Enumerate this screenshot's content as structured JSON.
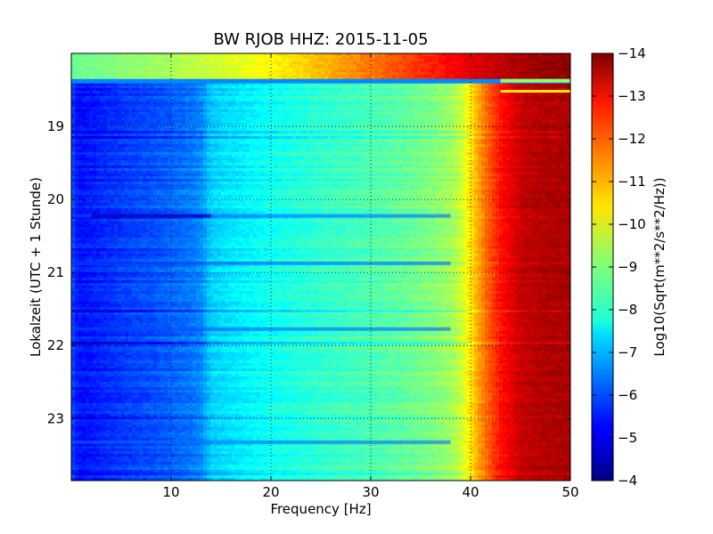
{
  "chart_data": {
    "type": "heatmap",
    "title": "BW RJOB HHZ: 2015-11-05",
    "xlabel": "Frequency [Hz]",
    "ylabel": "Lokalzeit (UTC + 1 Stunde)",
    "colorbar_label": "Log10(Sqrt(m**2/s**2/Hz))",
    "colormap": "jet",
    "grid": true,
    "x": {
      "lim": [
        0,
        50
      ],
      "ticks": [
        10,
        20,
        30,
        40,
        50
      ],
      "tick_labels": [
        "10",
        "20",
        "30",
        "40",
        "50"
      ]
    },
    "y": {
      "lim": [
        18.0,
        23.85
      ],
      "inverted": true,
      "ticks": [
        19,
        20,
        21,
        22,
        23
      ],
      "tick_labels": [
        "19",
        "20",
        "21",
        "22",
        "23"
      ]
    },
    "colorbar": {
      "lim": [
        -14,
        -4
      ],
      "ticks": [
        -4,
        -5,
        -6,
        -7,
        -8,
        -9,
        -10,
        -11,
        -12,
        -13,
        -14
      ],
      "tick_labels": [
        "−4",
        "−5",
        "−6",
        "−7",
        "−8",
        "−9",
        "−10",
        "−11",
        "−12",
        "−13",
        "−14"
      ]
    },
    "data_start_hour": 18.35,
    "frequency_profile_hz": [
      0,
      0.5,
      1,
      2,
      5,
      8,
      10,
      12,
      13,
      14,
      16,
      18,
      20,
      23,
      26,
      30,
      33,
      36,
      38,
      39,
      40,
      41,
      42,
      43,
      45,
      47,
      50
    ],
    "frequency_profile_value": [
      -6.0,
      -5.5,
      -5.4,
      -5.5,
      -5.8,
      -6.0,
      -6.2,
      -6.4,
      -6.6,
      -7.3,
      -7.5,
      -7.7,
      -7.9,
      -8.1,
      -8.3,
      -8.5,
      -8.7,
      -9.0,
      -9.3,
      -9.7,
      -10.5,
      -11.3,
      -12.0,
      -12.6,
      -13.3,
      -13.5,
      -13.6
    ],
    "pre_data_profile_hz": [
      0,
      5,
      10,
      15,
      20,
      25,
      30,
      35,
      40,
      45,
      50
    ],
    "pre_data_profile_value": [
      -8.8,
      -9.1,
      -9.4,
      -9.8,
      -10.3,
      -10.9,
      -11.6,
      -12.3,
      -13.0,
      -13.6,
      -13.9
    ]
  }
}
